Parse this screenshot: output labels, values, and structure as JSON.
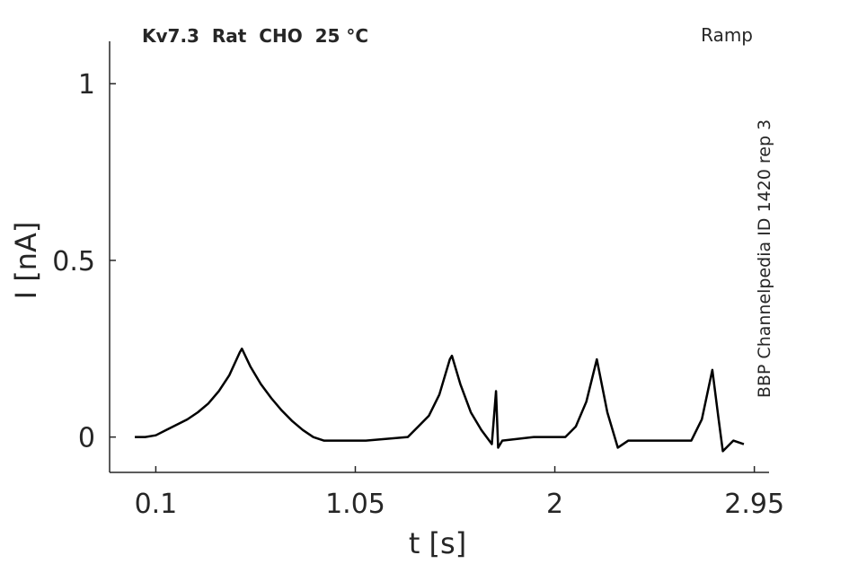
{
  "chart_data": {
    "type": "line",
    "title": "Kv7.3  Rat  CHO  25 °C",
    "subtitle": "Ramp",
    "annotation": "BBP Channelpedia ID 1420 rep 3",
    "xlabel": "t [s]",
    "ylabel": "I [nA]",
    "x": [
      0,
      0.05,
      0.1,
      0.15,
      0.2,
      0.25,
      0.3,
      0.35,
      0.4,
      0.45,
      0.5,
      0.51,
      0.55,
      0.6,
      0.65,
      0.7,
      0.75,
      0.8,
      0.85,
      0.9,
      1.0,
      1.1,
      1.2,
      1.3,
      1.35,
      1.4,
      1.45,
      1.5,
      1.51,
      1.55,
      1.6,
      1.65,
      1.7,
      1.72,
      1.73,
      1.75,
      1.9,
      2.05,
      2.1,
      2.15,
      2.2,
      2.25,
      2.3,
      2.35,
      2.5,
      2.65,
      2.7,
      2.75,
      2.78,
      2.8,
      2.85,
      2.9
    ],
    "series": [
      {
        "name": "I",
        "color": "#000000",
        "values": [
          0,
          0.0,
          0.005,
          0.02,
          0.035,
          0.05,
          0.07,
          0.095,
          0.13,
          0.175,
          0.24,
          0.25,
          0.2,
          0.15,
          0.11,
          0.075,
          0.045,
          0.02,
          0.0,
          -0.01,
          -0.01,
          -0.01,
          -0.005,
          0.0,
          0.03,
          0.06,
          0.12,
          0.22,
          0.23,
          0.15,
          0.07,
          0.02,
          -0.02,
          0.13,
          -0.03,
          -0.01,
          0.0,
          0.0,
          0.03,
          0.1,
          0.22,
          0.07,
          -0.03,
          -0.01,
          -0.01,
          -0.01,
          0.05,
          0.19,
          0.05,
          -0.04,
          -0.01,
          -0.02
        ]
      }
    ],
    "xlim": [
      -0.12,
      3.02
    ],
    "ylim": [
      -0.1,
      1.12
    ],
    "xticks": [
      0.1,
      1.05,
      2,
      2.95
    ],
    "yticks": [
      0,
      0.5,
      1
    ]
  }
}
